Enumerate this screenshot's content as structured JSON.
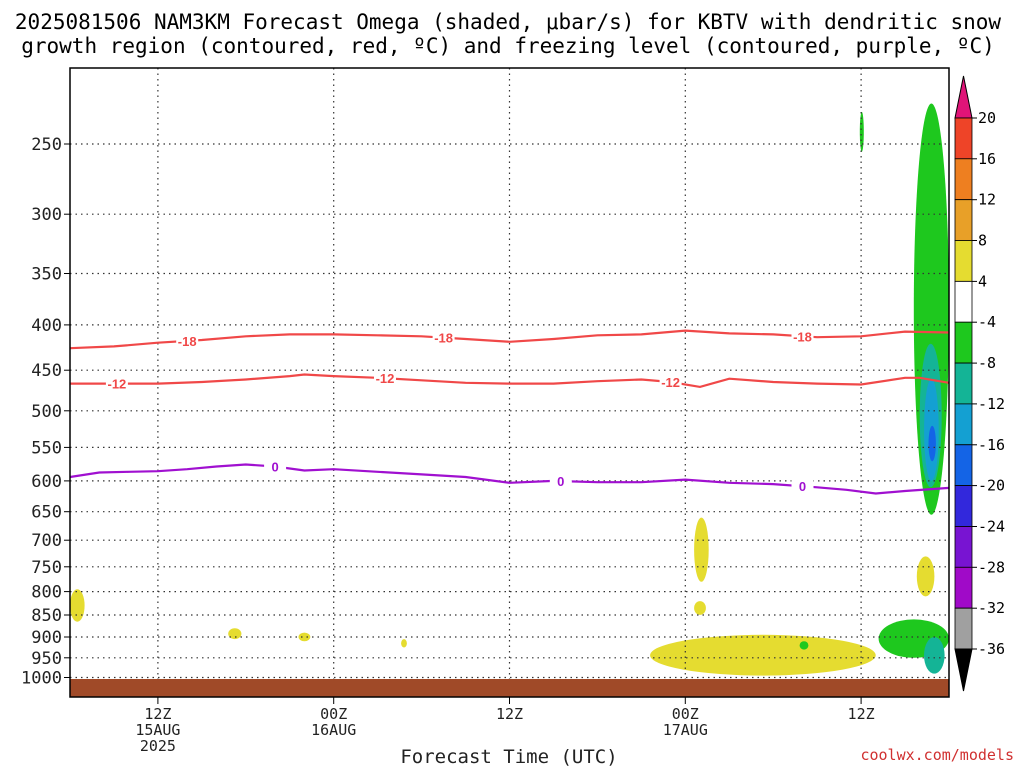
{
  "title_line1": "2025081506 NAM3KM Forecast Omega (shaded, μbar/s) for KBTV with dendritic snow",
  "title_line2": "growth region (contoured, red, ºC) and freezing level (contoured, purple, ºC)",
  "credit": "coolwx.com/models",
  "chart_data": {
    "type": "heatmap",
    "xlabel": "Forecast Time (UTC)",
    "ylabel": "",
    "x_ticks": [
      {
        "hour": 6,
        "labels": [
          "12Z",
          "15AUG",
          "2025"
        ]
      },
      {
        "hour": 18,
        "labels": [
          "00Z",
          "16AUG"
        ]
      },
      {
        "hour": 30,
        "labels": [
          "12Z"
        ]
      },
      {
        "hour": 42,
        "labels": [
          "00Z",
          "17AUG"
        ]
      },
      {
        "hour": 54,
        "labels": [
          "12Z"
        ]
      }
    ],
    "xlim": [
      0,
      60
    ],
    "y_axis": "pressure (hPa), inverted",
    "ylim": [
      1000,
      200
    ],
    "y_ticks": [
      250,
      300,
      350,
      400,
      450,
      500,
      550,
      600,
      650,
      700,
      750,
      800,
      850,
      900,
      950,
      1000
    ],
    "grid": true,
    "colorbar": {
      "labels": [
        "20",
        "16",
        "12",
        "8",
        "4",
        "-4",
        "-8",
        "-12",
        "-16",
        "-20",
        "-24",
        "-28",
        "-32",
        "-36"
      ],
      "colors": [
        "#e8144a",
        "#ee4428",
        "#ee7f20",
        "#e8a028",
        "#e5dc30",
        "#ffffff",
        "#1ec81e",
        "#14b496",
        "#14a0d2",
        "#1464e6",
        "#3228dc",
        "#7814d2",
        "#a00ac8",
        "#a0a0a0",
        "#000000"
      ],
      "top_arrow_color": "#e01478",
      "bottom_arrow_color": "#000000"
    },
    "series": [
      {
        "name": "-18",
        "color": "#f04848",
        "x": [
          0,
          3,
          6,
          9,
          12,
          15,
          18,
          21,
          24,
          27,
          30,
          33,
          36,
          39,
          42,
          45,
          48,
          51,
          54,
          57,
          60
        ],
        "y": [
          425,
          423,
          419,
          416,
          412,
          410,
          410,
          411,
          412,
          415,
          418,
          415,
          411,
          410,
          406,
          409,
          410,
          413,
          412,
          407,
          408
        ],
        "label_at": [
          8,
          25.5,
          50
        ]
      },
      {
        "name": "-12",
        "color": "#f04848",
        "x": [
          0,
          3,
          6,
          9,
          12,
          15,
          16,
          18,
          21,
          24,
          27,
          30,
          33,
          36,
          39,
          41,
          43,
          45,
          48,
          51,
          54,
          57,
          58,
          60
        ],
        "y": [
          466,
          466,
          466,
          464,
          461,
          457,
          455,
          457,
          459,
          462,
          465,
          466,
          466,
          463,
          461,
          464,
          470,
          460,
          464,
          466,
          467,
          459,
          459,
          465
        ],
        "label_at": [
          3.2,
          21.5,
          41
        ]
      },
      {
        "name": "0",
        "color": "#a010d0",
        "x": [
          0,
          2,
          4,
          6,
          8,
          10,
          12,
          14,
          16,
          18,
          21,
          24,
          27,
          30,
          33,
          36,
          39,
          42,
          45,
          48,
          51,
          53,
          55,
          57,
          60
        ],
        "y": [
          594,
          587,
          586,
          585,
          582,
          578,
          575,
          578,
          584,
          582,
          586,
          590,
          594,
          603,
          600,
          602,
          602,
          598,
          603,
          605,
          610,
          614,
          620,
          616,
          611
        ],
        "label_at": [
          14,
          33.5,
          50
        ]
      }
    ],
    "shaded_regions": [
      {
        "value_range": [
          4,
          8
        ],
        "color": "#e5dc30",
        "hour_range": [
          0,
          1
        ],
        "p_range": [
          795,
          865
        ]
      },
      {
        "value_range": [
          4,
          8
        ],
        "color": "#e5dc30",
        "hour_range": [
          10.8,
          11.7
        ],
        "p_range": [
          880,
          905
        ]
      },
      {
        "value_range": [
          4,
          8
        ],
        "color": "#e5dc30",
        "hour_range": [
          15.6,
          16.4
        ],
        "p_range": [
          890,
          910
        ]
      },
      {
        "value_range": [
          4,
          8
        ],
        "color": "#e5dc30",
        "hour_range": [
          22.6,
          23
        ],
        "p_range": [
          905,
          925
        ]
      },
      {
        "value_range": [
          4,
          8
        ],
        "color": "#e5dc30",
        "hour_range": [
          42.6,
          43.6
        ],
        "p_range": [
          660,
          780
        ]
      },
      {
        "value_range": [
          4,
          8
        ],
        "color": "#e5dc30",
        "hour_range": [
          42.6,
          43.4
        ],
        "p_range": [
          820,
          850
        ]
      },
      {
        "value_range": [
          4,
          8
        ],
        "color": "#e5dc30",
        "hour_range": [
          39.6,
          55
        ],
        "p_range": [
          895,
          995
        ]
      },
      {
        "value_range": [
          4,
          8
        ],
        "color": "#e5dc30",
        "hour_range": [
          57.8,
          59
        ],
        "p_range": [
          730,
          810
        ]
      },
      {
        "value_range": [
          -8,
          -4
        ],
        "color": "#1ec81e",
        "hour_range": [
          54,
          54.1
        ],
        "p_range": [
          230,
          255
        ]
      },
      {
        "value_range": [
          -8,
          -4
        ],
        "color": "#1ec81e",
        "hour_range": [
          57.6,
          60
        ],
        "p_range": [
          225,
          655
        ]
      },
      {
        "value_range": [
          -8,
          -4
        ],
        "color": "#1ec81e",
        "hour_range": [
          55.2,
          60
        ],
        "p_range": [
          860,
          950
        ]
      },
      {
        "value_range": [
          -12,
          -8
        ],
        "color": "#14b496",
        "hour_range": [
          58,
          59.5
        ],
        "p_range": [
          420,
          610
        ]
      },
      {
        "value_range": [
          -16,
          -12
        ],
        "color": "#14a0d2",
        "hour_range": [
          58.3,
          59.3
        ],
        "p_range": [
          460,
          600
        ]
      },
      {
        "value_range": [
          -20,
          -16
        ],
        "color": "#1464e6",
        "hour_range": [
          58.6,
          59.1
        ],
        "p_range": [
          520,
          570
        ]
      },
      {
        "value_range": [
          -16,
          -8
        ],
        "color": "#14b496",
        "hour_range": [
          58.3,
          59.7
        ],
        "p_range": [
          900,
          990
        ]
      },
      {
        "value_range": [
          -8,
          -4
        ],
        "color": "#1ec81e",
        "hour_range": [
          49.8,
          50.4
        ],
        "p_range": [
          910,
          930
        ]
      }
    ],
    "terrain_color": "#a04a28"
  }
}
